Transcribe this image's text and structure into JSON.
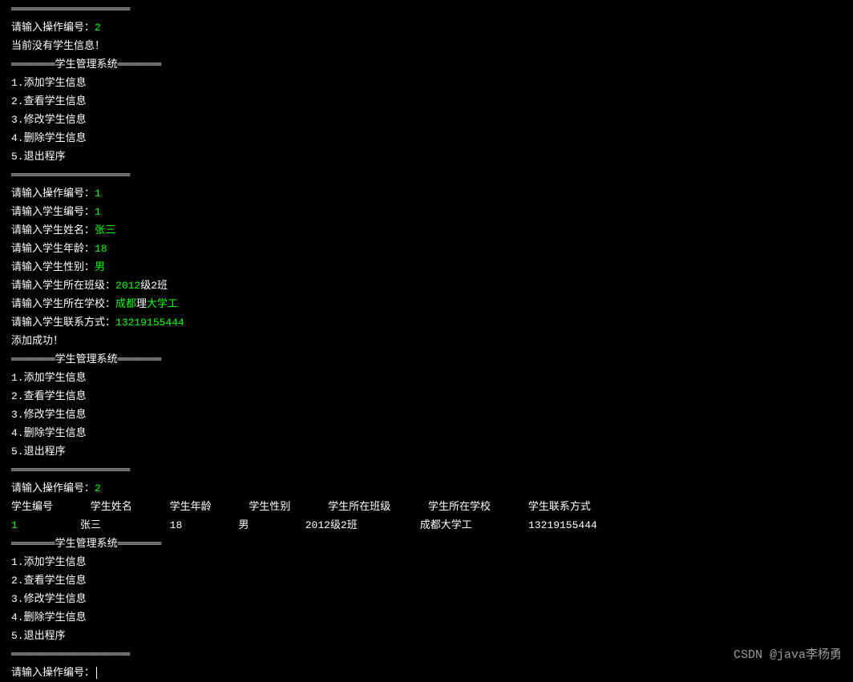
{
  "colors": {
    "background": "#000000",
    "text": "#ffffff",
    "input": "#00ff00",
    "watermark": "#b8b8b8"
  },
  "divider_top": "═══════════════════",
  "divider_bottom": "═══════════════════",
  "menu_title": "═══════学生管理系统═══════",
  "menu": {
    "item1": "1.添加学生信息",
    "item2": "2.查看学生信息",
    "item3": "3.修改学生信息",
    "item4": "4.删除学生信息",
    "item5": "5.退出程序"
  },
  "prompts": {
    "op_prompt": "请输入操作编号：",
    "no_students": "当前没有学生信息！",
    "student_id": "请输入学生编号：",
    "student_name": "请输入学生姓名：",
    "student_age": "请输入学生年龄：",
    "student_gender": "请输入学生性别：",
    "student_class": "请输入学生所在班级：",
    "student_school": "请输入学生所在学校：",
    "student_contact": "请输入学生联系方式：",
    "add_success": "添加成功！"
  },
  "inputs": {
    "op1": "2",
    "op2": "1",
    "op3": "2",
    "sid": "1",
    "name": "张三",
    "age": "18",
    "gender": "男",
    "class_prefix_num": "2012",
    "class_suffix": "级2班",
    "school_p1": "成都",
    "school_p2": "理",
    "school_p3": "大学工",
    "contact": "13219155444"
  },
  "table": {
    "header": "学生编号      学生姓名      学生年龄      学生性别      学生所在班级      学生所在学校      学生联系方式",
    "row1": {
      "id": "1",
      "name": "张三",
      "age": "18",
      "gender": "男",
      "class": "2012级2班",
      "school": "成都大学工",
      "contact": "13219155444"
    }
  },
  "watermark": "CSDN @java李杨勇"
}
